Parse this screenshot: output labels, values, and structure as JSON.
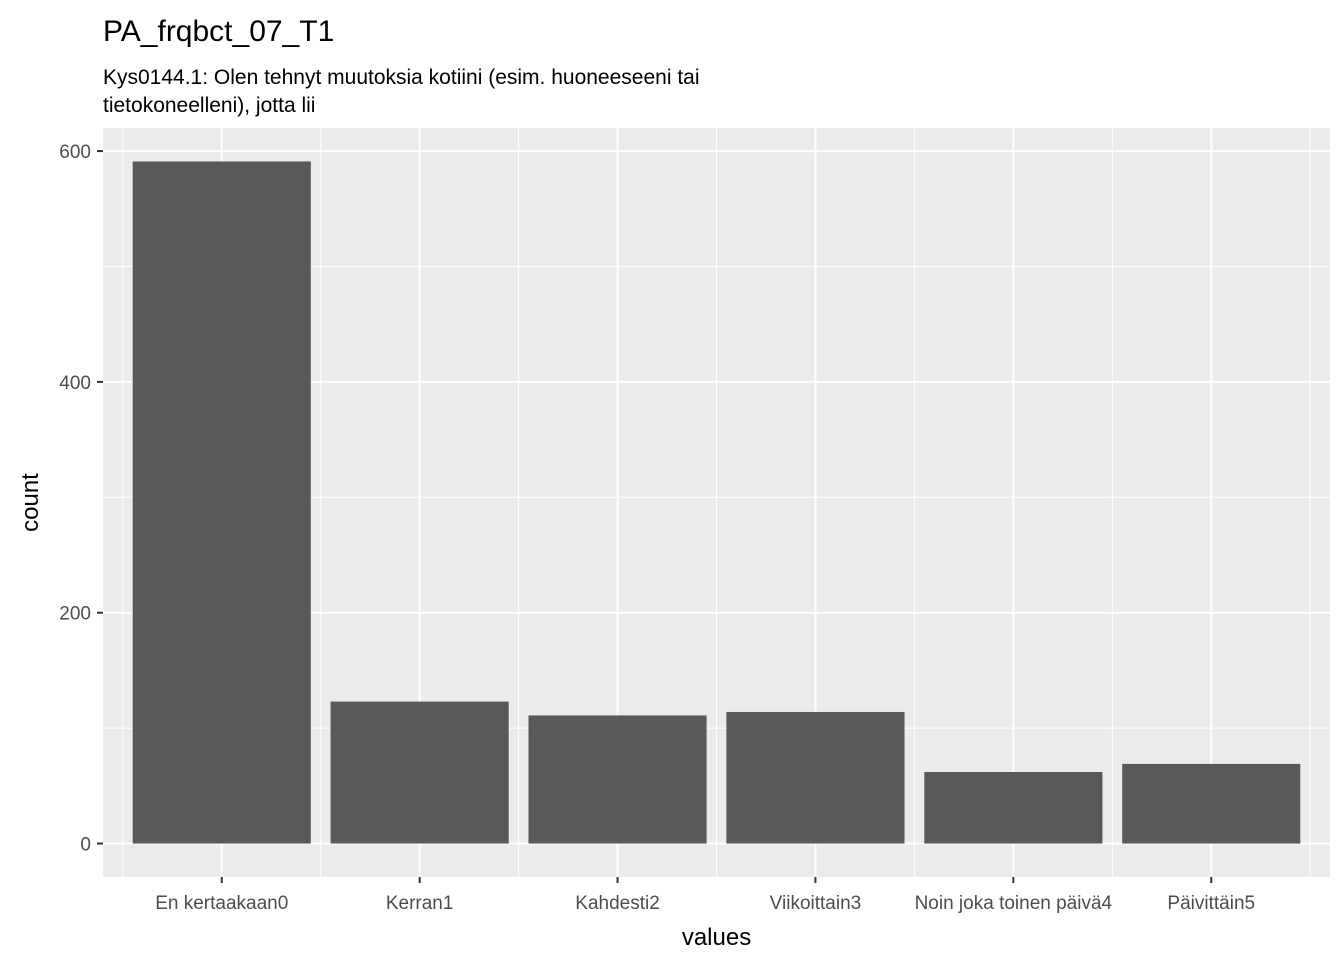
{
  "chart_data": {
    "type": "bar",
    "title": "PA_frqbct_07_T1",
    "subtitle_lines": [
      "Kys0144.1: Olen tehnyt muutoksia kotiini (esim. huoneeseeni tai",
      "tietokoneelleni), jotta lii"
    ],
    "xlabel": "values",
    "ylabel": "count",
    "categories": [
      "En kertaakaan0",
      "Kerran1",
      "Kahdesti2",
      "Viikoittain3",
      "Noin joka toinen päivä4",
      "Päivittäin5"
    ],
    "values": [
      591,
      123,
      111,
      114,
      62,
      69
    ],
    "ylim": [
      -29,
      620
    ],
    "yticks": [
      0,
      200,
      400,
      600
    ],
    "grid": true,
    "colors": {
      "bar": "#595959",
      "panel": "#ebebeb",
      "grid_major": "#ffffff",
      "tick": "#4d4d4d"
    }
  }
}
